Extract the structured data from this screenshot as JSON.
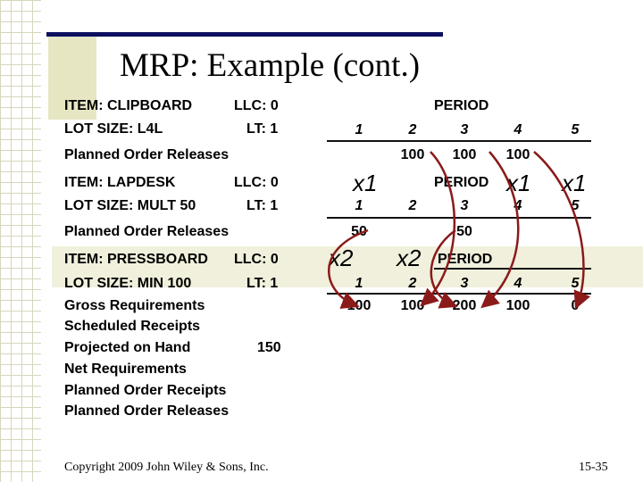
{
  "slide": {
    "title": "MRP: Example (cont.)",
    "footer": "Copyright 2009 John Wiley & Sons, Inc.",
    "page_number": "15-35"
  },
  "items": [
    {
      "item_label": "ITEM: CLIPBOARD",
      "llc_label": "LLC: 0",
      "lot_label": "LOT SIZE: L4L",
      "lt_label": "LT: 1",
      "period_label": "PERIOD",
      "periods": [
        "1",
        "2",
        "3",
        "4",
        "5"
      ],
      "row_label": "Planned Order Releases",
      "values": [
        "",
        "100",
        "100",
        "100",
        ""
      ]
    },
    {
      "item_label": "ITEM: LAPDESK",
      "llc_label": "LLC: 0",
      "lot_label": "LOT SIZE: MULT 50",
      "lt_label": "LT: 1",
      "period_label": "PERIOD",
      "periods": [
        "1",
        "2",
        "3",
        "4",
        "5"
      ],
      "row_label": "Planned Order Releases",
      "values": [
        "50",
        "",
        "50",
        "",
        ""
      ]
    },
    {
      "item_label": "ITEM: PRESSBOARD",
      "llc_label": "LLC: 0",
      "lot_label": "LOT SIZE: MIN 100",
      "lt_label": "LT: 1",
      "period_label": "PERIOD",
      "periods": [
        "1",
        "2",
        "3",
        "4",
        "5"
      ],
      "rows": [
        {
          "label": "Gross Requirements",
          "values": [
            "100",
            "100",
            "200",
            "100",
            "0"
          ]
        },
        {
          "label": "Scheduled Receipts",
          "values": [
            "",
            "",
            "",
            "",
            ""
          ]
        },
        {
          "label": "Projected on Hand",
          "on_hand": "150",
          "values": [
            "",
            "",
            "",
            "",
            ""
          ]
        },
        {
          "label": "Net Requirements",
          "values": [
            "",
            "",
            "",
            "",
            ""
          ]
        },
        {
          "label": "Planned Order Receipts",
          "values": [
            "",
            "",
            "",
            "",
            ""
          ]
        },
        {
          "label": "Planned Order Releases",
          "values": [
            "",
            "",
            "",
            "",
            ""
          ]
        }
      ]
    }
  ],
  "multipliers": {
    "lapdesk_p1": "x1",
    "lapdesk_p4": "x1",
    "lapdesk_p5": "x1",
    "pressboard_p1": "x2",
    "pressboard_p2": "x2"
  },
  "colors": {
    "title_bar": "#0b1060",
    "accent_box": "#e6e6c3",
    "arrow": "#8b1a1a"
  }
}
